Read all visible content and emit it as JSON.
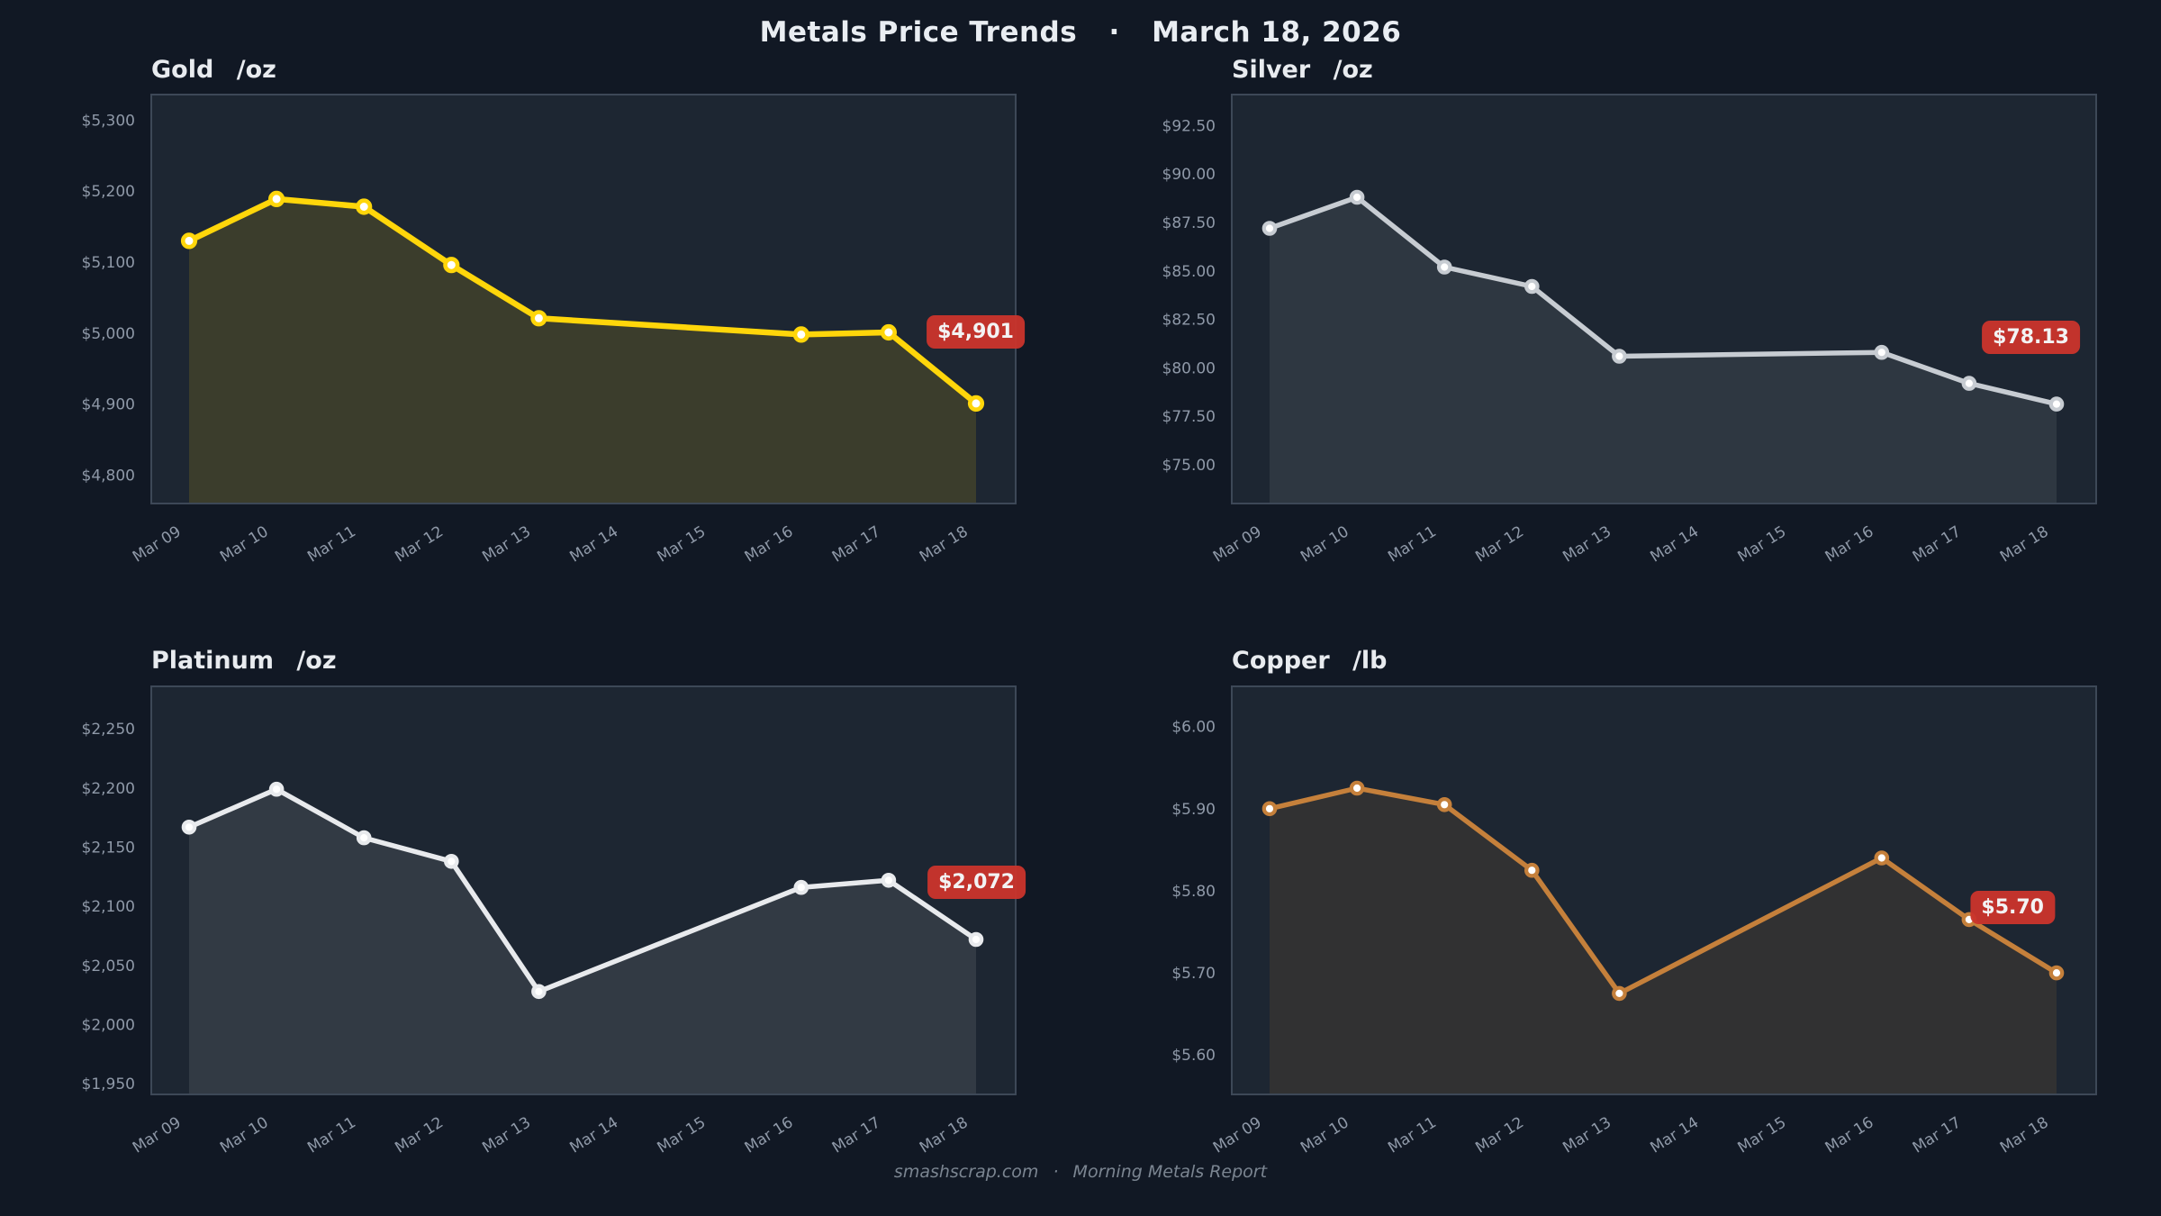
{
  "page": {
    "title": "Metals Price Trends",
    "title_separator": "·",
    "title_date": "March 18, 2026",
    "footer_site": "smashscrap.com",
    "footer_separator": "·",
    "footer_text": "Morning Metals Report",
    "background_color": "#111824",
    "panel_color": "#1d2632",
    "panel_border_color": "#3d4857",
    "axis_label_color": "#8f99a8",
    "badge_color": "#cb342c",
    "badge_text_color": "#ffffff"
  },
  "chart_data": [
    {
      "type": "line",
      "title": "Gold",
      "unit": "/oz",
      "line_color": "#ffd60a",
      "marker_fill": "#ffffff",
      "fill_opacity": 0.135,
      "last_price_label": "$4,901",
      "categories": [
        "Mar 09",
        "Mar 10",
        "Mar 11",
        "Mar 12",
        "Mar 13",
        "Mar 14",
        "Mar 15",
        "Mar 16",
        "Mar 17",
        "Mar 18"
      ],
      "data_dates": [
        "Mar 09",
        "Mar 10",
        "Mar 11",
        "Mar 12",
        "Mar 13",
        "Mar 16",
        "Mar 17",
        "Mar 18"
      ],
      "values": [
        5130,
        5189,
        5178,
        5096,
        5021,
        4998,
        5001,
        4901
      ],
      "ytick_labels": [
        "$5,300",
        "$5,200",
        "$5,100",
        "$5,000",
        "$4,900",
        "$4,800"
      ],
      "ytick_values": [
        5300,
        5200,
        5100,
        5000,
        4900,
        4800
      ],
      "ylim": [
        4760,
        5336
      ],
      "grid": false
    },
    {
      "type": "line",
      "title": "Silver",
      "unit": "/oz",
      "line_color": "#c7ccd2",
      "marker_fill": "#ffffff",
      "fill_opacity": 0.1,
      "last_price_label": "$78.13",
      "categories": [
        "Mar 09",
        "Mar 10",
        "Mar 11",
        "Mar 12",
        "Mar 13",
        "Mar 14",
        "Mar 15",
        "Mar 16",
        "Mar 17",
        "Mar 18"
      ],
      "data_dates": [
        "Mar 09",
        "Mar 10",
        "Mar 11",
        "Mar 12",
        "Mar 13",
        "Mar 16",
        "Mar 17",
        "Mar 18"
      ],
      "values": [
        87.2,
        88.8,
        85.2,
        84.2,
        80.6,
        80.8,
        79.2,
        78.13
      ],
      "ytick_labels": [
        "$92.50",
        "$90.00",
        "$87.50",
        "$85.00",
        "$82.50",
        "$80.00",
        "$77.50",
        "$75.00"
      ],
      "ytick_values": [
        92.5,
        90.0,
        87.5,
        85.0,
        82.5,
        80.0,
        77.5,
        75.0
      ],
      "ylim": [
        73.0,
        94.1
      ],
      "grid": false
    },
    {
      "type": "line",
      "title": "Platinum",
      "unit": "/oz",
      "line_color": "#e8eaed",
      "marker_fill": "#ffffff",
      "fill_opacity": 0.1,
      "last_price_label": "$2,072",
      "categories": [
        "Mar 09",
        "Mar 10",
        "Mar 11",
        "Mar 12",
        "Mar 13",
        "Mar 14",
        "Mar 15",
        "Mar 16",
        "Mar 17",
        "Mar 18"
      ],
      "data_dates": [
        "Mar 09",
        "Mar 10",
        "Mar 11",
        "Mar 12",
        "Mar 13",
        "Mar 16",
        "Mar 17",
        "Mar 18"
      ],
      "values": [
        2167,
        2199,
        2158,
        2138,
        2028,
        2116,
        2122,
        2072
      ],
      "ytick_labels": [
        "$2,250",
        "$2,200",
        "$2,150",
        "$2,100",
        "$2,050",
        "$2,000",
        "$1,950"
      ],
      "ytick_values": [
        2250,
        2200,
        2150,
        2100,
        2050,
        2000,
        1950
      ],
      "ylim": [
        1941,
        2286
      ],
      "grid": false
    },
    {
      "type": "line",
      "title": "Copper",
      "unit": "/lb",
      "line_color": "#c5803b",
      "marker_fill": "#ffffff",
      "fill_opacity": 0.12,
      "last_price_label": "$5.70",
      "categories": [
        "Mar 09",
        "Mar 10",
        "Mar 11",
        "Mar 12",
        "Mar 13",
        "Mar 14",
        "Mar 15",
        "Mar 16",
        "Mar 17",
        "Mar 18"
      ],
      "data_dates": [
        "Mar 09",
        "Mar 10",
        "Mar 11",
        "Mar 12",
        "Mar 13",
        "Mar 16",
        "Mar 17",
        "Mar 18"
      ],
      "values": [
        5.9,
        5.925,
        5.905,
        5.825,
        5.675,
        5.84,
        5.765,
        5.7
      ],
      "ytick_labels": [
        "$6.00",
        "$5.90",
        "$5.80",
        "$5.70",
        "$5.60"
      ],
      "ytick_values": [
        6.0,
        5.9,
        5.8,
        5.7,
        5.6
      ],
      "ylim": [
        5.552,
        6.049
      ],
      "grid": false
    }
  ]
}
